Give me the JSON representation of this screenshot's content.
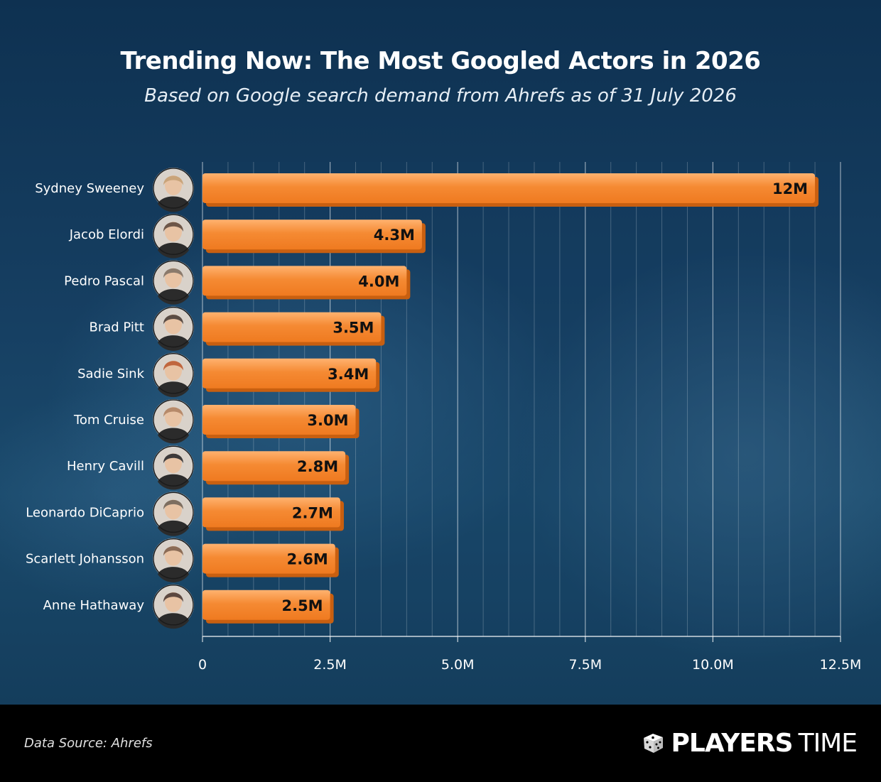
{
  "header": {
    "title": "Trending Now: The Most Googled Actors in 2026",
    "subtitle": "Based on Google search demand from Ahrefs as of 31 July 2026"
  },
  "chart_data": {
    "type": "bar",
    "orientation": "horizontal",
    "categories": [
      "Sydney Sweeney",
      "Jacob Elordi",
      "Pedro Pascal",
      "Brad Pitt",
      "Sadie Sink",
      "Tom Cruise",
      "Henry Cavill",
      "Leonardo DiCaprio",
      "Scarlett Johansson",
      "Anne Hathaway"
    ],
    "values": [
      12000000,
      4300000,
      4000000,
      3500000,
      3400000,
      3000000,
      2800000,
      2700000,
      2600000,
      2500000
    ],
    "value_labels": [
      "12M",
      "4.3M",
      "4.0M",
      "3.5M",
      "3.4M",
      "3.0M",
      "2.8M",
      "2.7M",
      "2.6M",
      "2.5M"
    ],
    "xlim": [
      0,
      12500000
    ],
    "x_ticks": [
      0,
      2500000,
      5000000,
      7500000,
      10000000,
      12500000
    ],
    "x_tick_labels": [
      "0",
      "2.5M",
      "5.0M",
      "7.5M",
      "10.0M",
      "12.5M"
    ],
    "title": "Trending Now: The Most Googled Actors in 2026",
    "subtitle": "Based on Google search demand from Ahrefs as of 31 July 2026",
    "xlabel": "",
    "ylabel": "",
    "grid": true,
    "legend": "none"
  },
  "footer": {
    "source": "Data Source: Ahrefs",
    "brand_bold": "PLAYERS",
    "brand_light": "TIME"
  },
  "icons": {
    "avatar": "actor-avatar-icon",
    "logo": "dice-icon"
  },
  "colors": {
    "bar": "#f58a33",
    "bar_shadow": "#c85f10",
    "bar_highlight": "#ffb26f",
    "background": "#0d3150",
    "footer": "#000000",
    "text": "#ffffff",
    "avatar_colors": [
      "#c9a47a",
      "#6d5648",
      "#8a7a6c",
      "#5a4c44",
      "#c0663e",
      "#b68a6a",
      "#3d3a3a",
      "#7d6e60",
      "#8b6c56",
      "#5c4840"
    ]
  }
}
